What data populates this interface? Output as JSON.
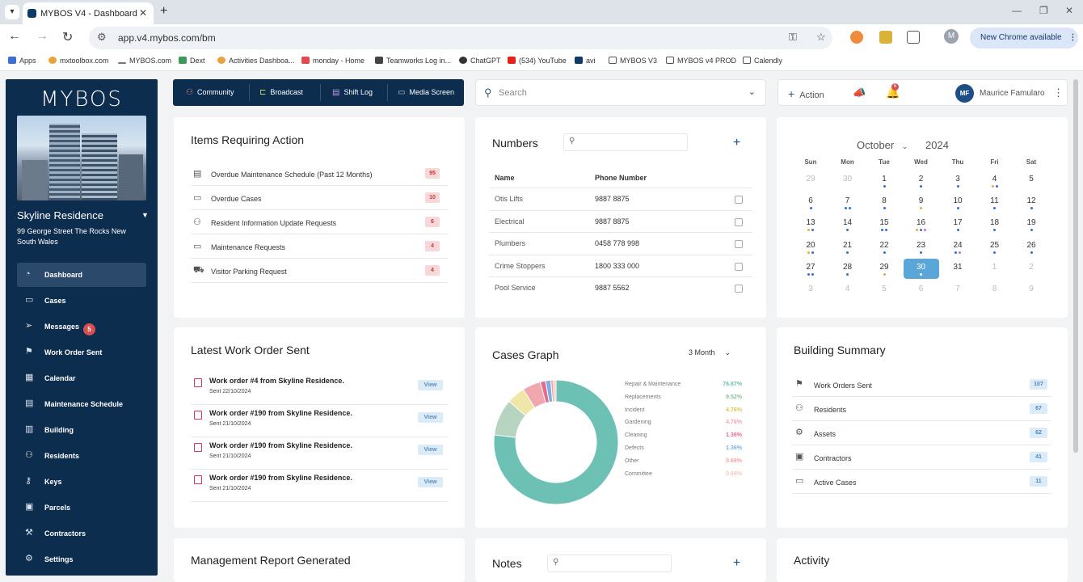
{
  "browser": {
    "tab_title": "MYBOS V4 - Dashboard",
    "url": "app.v4.mybos.com/bm",
    "new_chrome": "New Chrome available",
    "profile_initial": "M",
    "bookmarks": [
      "Apps",
      "mxtoolbox.com",
      "MYBOS.com",
      "Dext",
      "Activities Dashboa...",
      "monday - Home",
      "Teamworks Log in...",
      "ChatGPT",
      "(534) YouTube",
      "avi",
      "MYBOS V3",
      "MYBOS v4 PROD",
      "Calendly"
    ]
  },
  "sidebar": {
    "logo": "MYBOS",
    "building_name": "Skyline Residence",
    "building_address": "99 George Street The Rocks New South Wales",
    "items": [
      {
        "label": "Dashboard",
        "icon": "dashboard-icon"
      },
      {
        "label": "Cases",
        "icon": "cases-icon"
      },
      {
        "label": "Messages",
        "icon": "messages-icon",
        "badge": "5"
      },
      {
        "label": "Work Order Sent",
        "icon": "work-order-icon"
      },
      {
        "label": "Calendar",
        "icon": "calendar-icon"
      },
      {
        "label": "Maintenance Schedule",
        "icon": "maintenance-icon"
      },
      {
        "label": "Building",
        "icon": "building-icon"
      },
      {
        "label": "Residents",
        "icon": "residents-icon"
      },
      {
        "label": "Keys",
        "icon": "keys-icon"
      },
      {
        "label": "Parcels",
        "icon": "parcels-icon"
      },
      {
        "label": "Contractors",
        "icon": "contractors-icon"
      },
      {
        "label": "Settings",
        "icon": "settings-icon"
      }
    ]
  },
  "topnav": {
    "community": "Community",
    "broadcast": "Broadcast",
    "shift_log": "Shift Log",
    "media_screen": "Media Screen"
  },
  "search": {
    "placeholder": "Search"
  },
  "userbar": {
    "action": "Action",
    "notifications": "6",
    "initials": "MF",
    "name": "Maurice Famularo"
  },
  "items_requiring_action": {
    "title": "Items Requiring Action",
    "rows": [
      {
        "label": "Overdue Maintenance Schedule (Past 12 Months)",
        "count": "95"
      },
      {
        "label": "Overdue Cases",
        "count": "10"
      },
      {
        "label": "Resident Information Update Requests",
        "count": "6"
      },
      {
        "label": "Maintenance Requests",
        "count": "4"
      },
      {
        "label": "Visitor Parking Request",
        "count": "4"
      }
    ]
  },
  "numbers": {
    "title": "Numbers",
    "col_name": "Name",
    "col_phone": "Phone Number",
    "rows": [
      {
        "name": "Otis Lifts",
        "phone": "9887 8875"
      },
      {
        "name": "Electrical",
        "phone": "9887 8875"
      },
      {
        "name": "Plumbers",
        "phone": "0458 778 998"
      },
      {
        "name": "Crime Stoppers",
        "phone": "1800 333 000"
      },
      {
        "name": "Pool Service",
        "phone": "9887 5562"
      }
    ]
  },
  "calendar": {
    "month": "October",
    "year": "2024",
    "dow": [
      "Sun",
      "Mon",
      "Tue",
      "Wed",
      "Thu",
      "Fri",
      "Sat"
    ],
    "days": [
      "29",
      "30",
      "1",
      "2",
      "3",
      "4",
      "5",
      "6",
      "7",
      "8",
      "9",
      "10",
      "11",
      "12",
      "13",
      "14",
      "15",
      "16",
      "17",
      "18",
      "19",
      "20",
      "21",
      "22",
      "23",
      "24",
      "25",
      "26",
      "27",
      "28",
      "29",
      "30",
      "31",
      "1",
      "2",
      "3",
      "4",
      "5",
      "6",
      "7",
      "8",
      "9"
    ],
    "selected": "30"
  },
  "latest_work_orders": {
    "title": "Latest Work Order Sent",
    "view_label": "View",
    "rows": [
      {
        "title": "Work order #4 from Skyline Residence.",
        "date": "Sent 22/10/2024"
      },
      {
        "title": "Work order #190 from Skyline Residence.",
        "date": "Sent 21/10/2024"
      },
      {
        "title": "Work order #190 from Skyline Residence.",
        "date": "Sent 21/10/2024"
      },
      {
        "title": "Work order #190 from Skyline Residence.",
        "date": "Sent 21/10/2024"
      }
    ]
  },
  "cases_graph": {
    "title": "Cases Graph",
    "range": "3 Month",
    "chart_data": {
      "type": "pie",
      "categories": [
        "Repair & Maintenance",
        "Replacements",
        "Incident",
        "Gardening",
        "Cleaning",
        "Defects",
        "Other",
        "Committee"
      ],
      "values": [
        76.87,
        9.52,
        4.76,
        4.76,
        1.36,
        1.36,
        0.68,
        0.68
      ],
      "labels": [
        "76.87%",
        "9.52%",
        "4.76%",
        "4.76%",
        "1.36%",
        "1.36%",
        "0.68%",
        "0.68%"
      ],
      "colors": [
        "#6cc1b4",
        "#b7d4c0",
        "#efe6a7",
        "#f0a7ad",
        "#e56a8d",
        "#7cb0e0",
        "#f2a3a3",
        "#f7c9c3"
      ],
      "donut": true
    }
  },
  "building_summary": {
    "title": "Building Summary",
    "rows": [
      {
        "label": "Work Orders Sent",
        "count": "107"
      },
      {
        "label": "Residents",
        "count": "67"
      },
      {
        "label": "Assets",
        "count": "62"
      },
      {
        "label": "Contractors",
        "count": "41"
      },
      {
        "label": "Active Cases",
        "count": "11"
      }
    ]
  },
  "bottom_cards": {
    "management_report": "Management Report Generated",
    "notes": "Notes",
    "activity": "Activity"
  }
}
